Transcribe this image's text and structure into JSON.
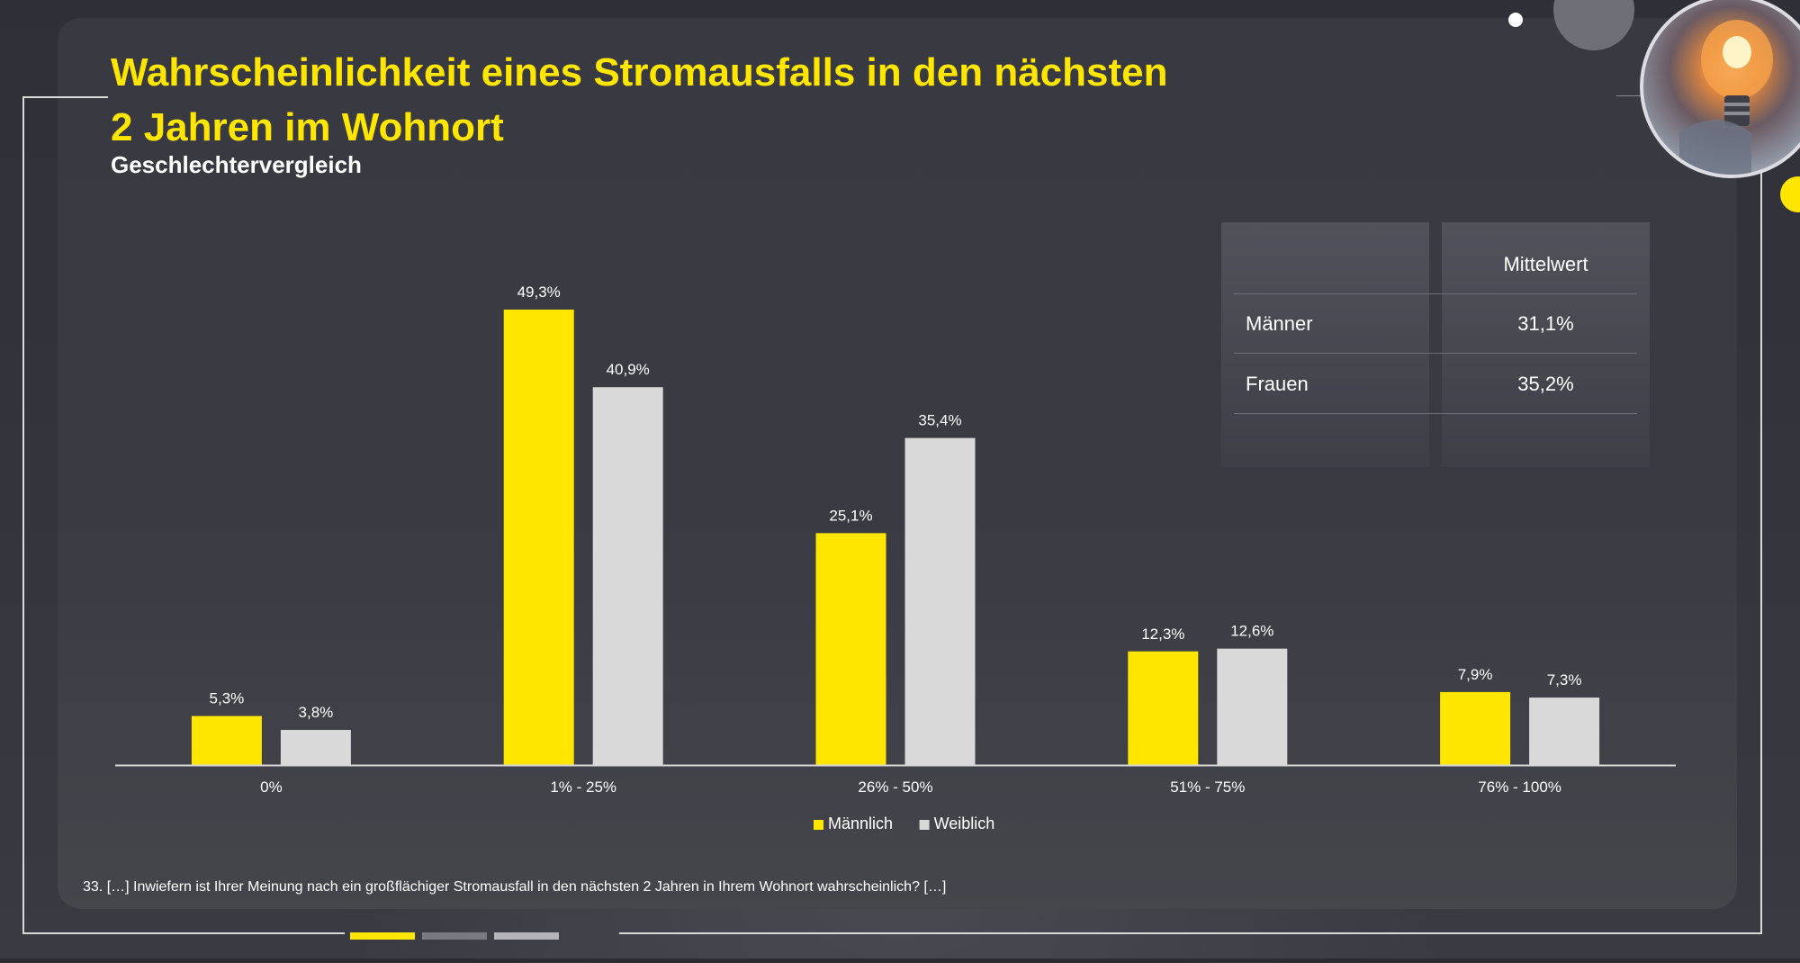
{
  "title_lines": [
    "Wahrscheinlichkeit eines Stromausfalls in den nächsten",
    "2 Jahren im Wohnort"
  ],
  "subtitle": "Geschlechtervergleich",
  "footnote": "33. […] Inwiefern ist Ihrer Meinung nach ein großflächiger Stromausfall in den nächsten 2 Jahren in Ihrem Wohnort wahrscheinlich? […]",
  "colors": {
    "accent": "#ffe600",
    "female": "#d9d9d9",
    "text": "#ffffff",
    "background": "#3a3a42"
  },
  "mean_table": {
    "header": "Mittelwert",
    "rows": [
      {
        "label": "Männer",
        "value": "31,1%"
      },
      {
        "label": "Frauen",
        "value": "35,2%"
      }
    ]
  },
  "chart_data": {
    "type": "bar",
    "title": "",
    "categories": [
      "0%",
      "1% - 25%",
      "26% - 50%",
      "51% - 75%",
      "76% - 100%"
    ],
    "series": [
      {
        "name": "Männlich",
        "values": [
          5.3,
          49.3,
          25.1,
          12.3,
          7.9
        ],
        "labels": [
          "5,3%",
          "49,3%",
          "25,1%",
          "12,3%",
          "7,9%"
        ],
        "color": "#ffe600"
      },
      {
        "name": "Weiblich",
        "values": [
          3.8,
          40.9,
          35.4,
          12.6,
          7.3
        ],
        "labels": [
          "3,8%",
          "40,9%",
          "35,4%",
          "12,6%",
          "7,3%"
        ],
        "color": "#d9d9d9"
      }
    ],
    "xlabel": "",
    "ylabel": "",
    "ylim": [
      0,
      50
    ],
    "grid": false,
    "legend": "bottom-center"
  }
}
